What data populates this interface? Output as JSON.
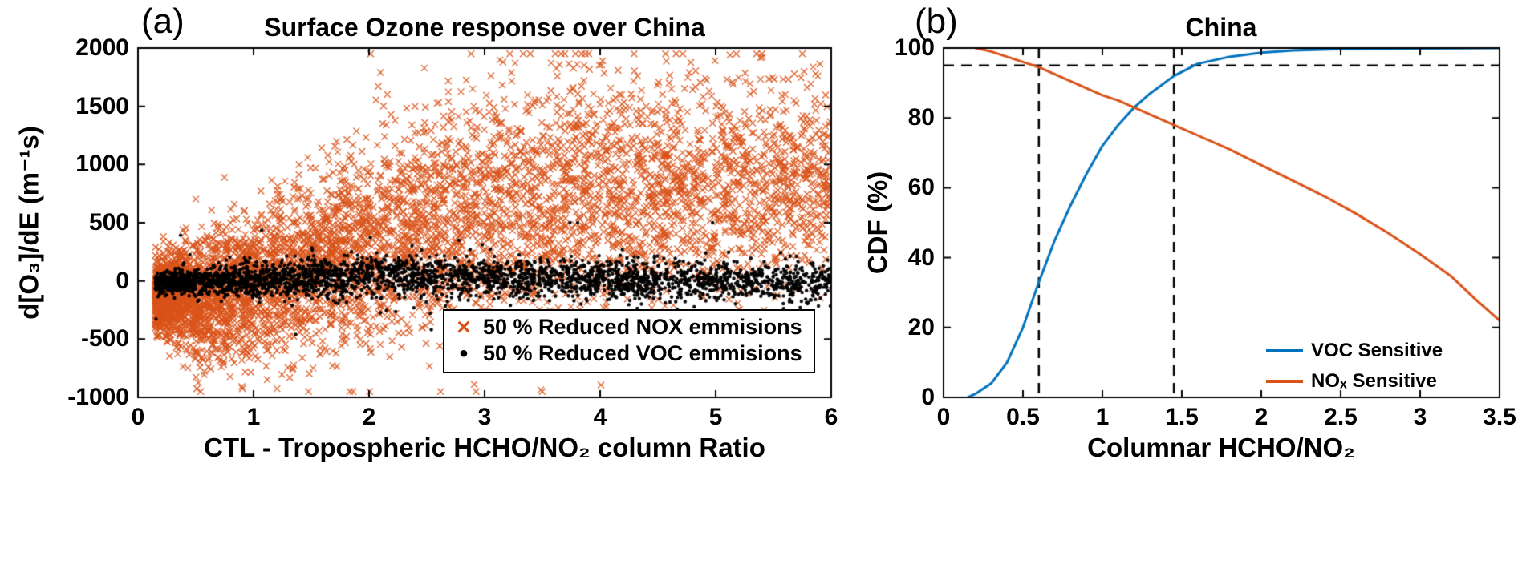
{
  "colors": {
    "orange": "#D95319",
    "blue": "#0072BD",
    "black": "#000000",
    "background": "#FFFFFF",
    "reference_dash": "#000000"
  },
  "chart_data": [
    {
      "type": "scatter",
      "panel_tag": "(a)",
      "title": "Surface Ozone response over China",
      "xlabel": "CTL - Tropospheric HCHO/NO₂ column Ratio",
      "ylabel": "d[O₃]/dE (m⁻¹s)",
      "xlim": [
        0,
        6
      ],
      "ylim": [
        -1000,
        2000
      ],
      "xticks": [
        0,
        1,
        2,
        3,
        4,
        5,
        6
      ],
      "yticks": [
        -1000,
        -500,
        0,
        500,
        1000,
        1500,
        2000
      ],
      "grid": false,
      "legend": {
        "position": "lower right",
        "box": true,
        "entries": [
          {
            "label": "50 % Reduced NOX emmisions",
            "marker": "x",
            "glyph": "×",
            "color": "#D95319"
          },
          {
            "label": "50 % Reduced VOC emmisions",
            "marker": "dot",
            "glyph": "•",
            "color": "#000000"
          }
        ]
      },
      "series": [
        {
          "name": "50 % Reduced NOX emmisions",
          "marker": "x",
          "color": "#D95319",
          "n_points": 6000,
          "seed": 101,
          "x_distribution": {
            "min": 0.15,
            "max": 6.0,
            "power": 1.6
          },
          "trend": {
            "x": [
              0.15,
              0.5,
              1.0,
              1.5,
              2.0,
              2.5,
              3.0,
              4.0,
              5.0,
              6.0
            ],
            "y_mean": [
              -120,
              -130,
              -60,
              120,
              330,
              480,
              600,
              720,
              800,
              850
            ],
            "y_sd": [
              140,
              260,
              320,
              380,
              430,
              470,
              500,
              540,
              500,
              430
            ]
          },
          "y_clip": [
            -950,
            1950
          ]
        },
        {
          "name": "50 % Reduced VOC emmisions",
          "marker": "dot",
          "color": "#000000",
          "n_points": 3200,
          "seed": 202,
          "x_distribution": {
            "min": 0.15,
            "max": 6.0,
            "power": 1.25
          },
          "trend": {
            "x": [
              0.15,
              1.0,
              2.0,
              3.0,
              4.0,
              5.0,
              6.0
            ],
            "y_mean": [
              -15,
              10,
              45,
              25,
              10,
              0,
              -15
            ],
            "y_sd": [
              45,
              75,
              95,
              85,
              80,
              80,
              85
            ]
          },
          "outlier_fraction": 0.012,
          "outlier_scale": 4,
          "y_clip": [
            -460,
            500
          ]
        }
      ]
    },
    {
      "type": "line",
      "panel_tag": "(b)",
      "title": "China",
      "xlabel": "Columnar HCHO/NO₂",
      "ylabel": "CDF (%)",
      "xlim": [
        0,
        3.5
      ],
      "ylim": [
        0,
        100
      ],
      "xticks": [
        0,
        0.5,
        1,
        1.5,
        2,
        2.5,
        3,
        3.5
      ],
      "yticks": [
        0,
        20,
        40,
        60,
        80,
        100
      ],
      "grid": false,
      "legend": {
        "position": "lower right",
        "box": false,
        "entries": [
          {
            "label": "VOC Sensitive",
            "color": "#0072BD"
          },
          {
            "label": "NOₓ Sensitive",
            "color": "#D95319"
          }
        ]
      },
      "series": [
        {
          "name": "VOC Sensitive",
          "color": "#0072BD",
          "x": [
            0.15,
            0.2,
            0.3,
            0.4,
            0.5,
            0.6,
            0.7,
            0.8,
            0.9,
            1.0,
            1.1,
            1.2,
            1.3,
            1.45,
            1.6,
            1.8,
            2.0,
            2.2,
            2.5,
            3.0,
            3.5
          ],
          "y": [
            0,
            1,
            4,
            10,
            20,
            33,
            45,
            55,
            64,
            72,
            78,
            83,
            87,
            92,
            95.5,
            97.5,
            98.7,
            99.3,
            99.7,
            99.9,
            100
          ]
        },
        {
          "name": "NOₓ Sensitive",
          "color": "#D95319",
          "x": [
            0.2,
            0.3,
            0.4,
            0.5,
            0.6,
            0.7,
            0.8,
            0.9,
            1.0,
            1.1,
            1.2,
            1.3,
            1.4,
            1.5,
            1.6,
            1.8,
            2.0,
            2.2,
            2.4,
            2.6,
            2.8,
            3.0,
            3.2,
            3.35,
            3.5
          ],
          "y": [
            100,
            99,
            97.5,
            96,
            94.5,
            92.5,
            90.5,
            88.5,
            86.5,
            85,
            83,
            81,
            79,
            77,
            75,
            71,
            66.5,
            62,
            57.5,
            52.5,
            47,
            41,
            34.5,
            28,
            22
          ]
        }
      ],
      "reference_lines": {
        "style": "dashed",
        "color": "#000000",
        "horizontal_y": [
          95
        ],
        "vertical_x": [
          0.6,
          1.45
        ]
      }
    }
  ]
}
